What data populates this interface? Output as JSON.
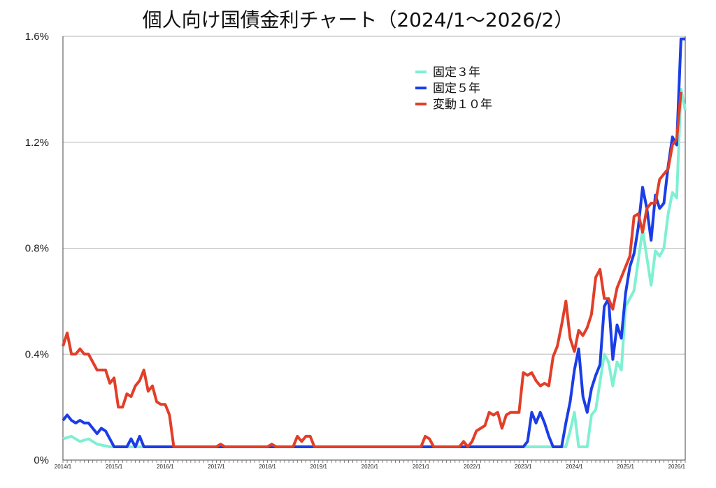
{
  "chart_data": {
    "type": "line",
    "title": "個人向け国債金利チャート（2024/1〜2026/2）",
    "xlabel": "",
    "ylabel": "",
    "y_ticks": [
      "0%",
      "0.4%",
      "0.8%",
      "1.2%",
      "1.6%"
    ],
    "ylim": [
      0,
      1.6
    ],
    "grid": "horizontal",
    "legend_position": "top-right",
    "x_ticks": [
      "2014/1",
      "2015/1",
      "2016/1",
      "2017/1",
      "2018/1",
      "2019/1",
      "2020/1",
      "2021/1",
      "2022/1",
      "2023/1",
      "2024/1",
      "2025/1",
      "2026/1"
    ],
    "x_start": "2014/1",
    "x_end": "2026/2",
    "series": [
      {
        "name": "固定３年",
        "color": "#7ff0d2",
        "points": [
          [
            "2014/1",
            0.08
          ],
          [
            "2014/3",
            0.09
          ],
          [
            "2014/5",
            0.07
          ],
          [
            "2014/7",
            0.08
          ],
          [
            "2014/9",
            0.06
          ],
          [
            "2014/12",
            0.05
          ],
          [
            "2015/1",
            0.05
          ],
          [
            "2023/11",
            0.05
          ],
          [
            "2023/12",
            0.11
          ],
          [
            "2024/1",
            0.18
          ],
          [
            "2024/2",
            0.05
          ],
          [
            "2024/4",
            0.05
          ],
          [
            "2024/5",
            0.17
          ],
          [
            "2024/6",
            0.19
          ],
          [
            "2024/8",
            0.4
          ],
          [
            "2024/9",
            0.37
          ],
          [
            "2024/10",
            0.28
          ],
          [
            "2024/11",
            0.37
          ],
          [
            "2024/12",
            0.34
          ],
          [
            "2025/1",
            0.58
          ],
          [
            "2025/3",
            0.64
          ],
          [
            "2025/5",
            0.87
          ],
          [
            "2025/7",
            0.66
          ],
          [
            "2025/8",
            0.79
          ],
          [
            "2025/9",
            0.77
          ],
          [
            "2025/10",
            0.8
          ],
          [
            "2025/11",
            0.93
          ],
          [
            "2025/12",
            1.01
          ],
          [
            "2026/1",
            0.99
          ],
          [
            "2026/2",
            1.4
          ],
          [
            "2026/3",
            1.32
          ]
        ]
      },
      {
        "name": "固定５年",
        "color": "#1a3de8",
        "points": [
          [
            "2014/1",
            0.15
          ],
          [
            "2014/2",
            0.17
          ],
          [
            "2014/3",
            0.15
          ],
          [
            "2014/4",
            0.14
          ],
          [
            "2014/5",
            0.15
          ],
          [
            "2014/6",
            0.14
          ],
          [
            "2014/7",
            0.14
          ],
          [
            "2014/9",
            0.1
          ],
          [
            "2014/10",
            0.12
          ],
          [
            "2014/11",
            0.11
          ],
          [
            "2015/1",
            0.05
          ],
          [
            "2015/4",
            0.05
          ],
          [
            "2015/5",
            0.08
          ],
          [
            "2015/6",
            0.05
          ],
          [
            "2015/7",
            0.09
          ],
          [
            "2015/8",
            0.05
          ],
          [
            "2023/1",
            0.05
          ],
          [
            "2023/2",
            0.07
          ],
          [
            "2023/3",
            0.18
          ],
          [
            "2023/4",
            0.14
          ],
          [
            "2023/5",
            0.18
          ],
          [
            "2023/6",
            0.14
          ],
          [
            "2023/7",
            0.09
          ],
          [
            "2023/8",
            0.05
          ],
          [
            "2023/10",
            0.05
          ],
          [
            "2023/11",
            0.14
          ],
          [
            "2023/12",
            0.22
          ],
          [
            "2024/1",
            0.34
          ],
          [
            "2024/2",
            0.42
          ],
          [
            "2024/3",
            0.24
          ],
          [
            "2024/4",
            0.18
          ],
          [
            "2024/5",
            0.27
          ],
          [
            "2024/6",
            0.32
          ],
          [
            "2024/7",
            0.36
          ],
          [
            "2024/8",
            0.58
          ],
          [
            "2024/9",
            0.61
          ],
          [
            "2024/10",
            0.38
          ],
          [
            "2024/11",
            0.51
          ],
          [
            "2024/12",
            0.46
          ],
          [
            "2025/1",
            0.63
          ],
          [
            "2025/2",
            0.73
          ],
          [
            "2025/3",
            0.78
          ],
          [
            "2025/4",
            0.88
          ],
          [
            "2025/5",
            1.03
          ],
          [
            "2025/6",
            0.95
          ],
          [
            "2025/7",
            0.83
          ],
          [
            "2025/8",
            1.0
          ],
          [
            "2025/9",
            0.95
          ],
          [
            "2025/10",
            0.97
          ],
          [
            "2025/11",
            1.11
          ],
          [
            "2025/12",
            1.22
          ],
          [
            "2026/1",
            1.19
          ],
          [
            "2026/2",
            1.59
          ],
          [
            "2026/3",
            1.59
          ]
        ]
      },
      {
        "name": "変動１０年",
        "color": "#e23e28",
        "points": [
          [
            "2014/1",
            0.43
          ],
          [
            "2014/2",
            0.48
          ],
          [
            "2014/3",
            0.4
          ],
          [
            "2014/4",
            0.4
          ],
          [
            "2014/5",
            0.42
          ],
          [
            "2014/6",
            0.4
          ],
          [
            "2014/7",
            0.4
          ],
          [
            "2014/9",
            0.34
          ],
          [
            "2014/10",
            0.34
          ],
          [
            "2014/11",
            0.34
          ],
          [
            "2014/12",
            0.29
          ],
          [
            "2015/1",
            0.31
          ],
          [
            "2015/2",
            0.2
          ],
          [
            "2015/3",
            0.2
          ],
          [
            "2015/4",
            0.25
          ],
          [
            "2015/5",
            0.24
          ],
          [
            "2015/6",
            0.28
          ],
          [
            "2015/7",
            0.3
          ],
          [
            "2015/8",
            0.34
          ],
          [
            "2015/9",
            0.26
          ],
          [
            "2015/10",
            0.28
          ],
          [
            "2015/11",
            0.22
          ],
          [
            "2015/12",
            0.21
          ],
          [
            "2016/1",
            0.21
          ],
          [
            "2016/2",
            0.17
          ],
          [
            "2016/3",
            0.05
          ],
          [
            "2017/1",
            0.05
          ],
          [
            "2017/2",
            0.06
          ],
          [
            "2017/3",
            0.05
          ],
          [
            "2018/1",
            0.05
          ],
          [
            "2018/2",
            0.06
          ],
          [
            "2018/3",
            0.05
          ],
          [
            "2018/7",
            0.05
          ],
          [
            "2018/8",
            0.09
          ],
          [
            "2018/9",
            0.07
          ],
          [
            "2018/10",
            0.09
          ],
          [
            "2018/11",
            0.09
          ],
          [
            "2018/12",
            0.05
          ],
          [
            "2021/1",
            0.05
          ],
          [
            "2021/2",
            0.09
          ],
          [
            "2021/3",
            0.08
          ],
          [
            "2021/4",
            0.05
          ],
          [
            "2021/10",
            0.05
          ],
          [
            "2021/11",
            0.07
          ],
          [
            "2021/12",
            0.05
          ],
          [
            "2022/1",
            0.07
          ],
          [
            "2022/2",
            0.11
          ],
          [
            "2022/3",
            0.12
          ],
          [
            "2022/4",
            0.13
          ],
          [
            "2022/5",
            0.18
          ],
          [
            "2022/6",
            0.17
          ],
          [
            "2022/7",
            0.18
          ],
          [
            "2022/8",
            0.12
          ],
          [
            "2022/9",
            0.17
          ],
          [
            "2022/10",
            0.18
          ],
          [
            "2022/11",
            0.18
          ],
          [
            "2022/12",
            0.18
          ],
          [
            "2023/1",
            0.33
          ],
          [
            "2023/2",
            0.32
          ],
          [
            "2023/3",
            0.33
          ],
          [
            "2023/4",
            0.3
          ],
          [
            "2023/5",
            0.28
          ],
          [
            "2023/6",
            0.29
          ],
          [
            "2023/7",
            0.28
          ],
          [
            "2023/8",
            0.39
          ],
          [
            "2023/9",
            0.43
          ],
          [
            "2023/10",
            0.51
          ],
          [
            "2023/11",
            0.6
          ],
          [
            "2023/12",
            0.46
          ],
          [
            "2024/1",
            0.41
          ],
          [
            "2024/2",
            0.49
          ],
          [
            "2024/3",
            0.47
          ],
          [
            "2024/4",
            0.5
          ],
          [
            "2024/5",
            0.55
          ],
          [
            "2024/6",
            0.69
          ],
          [
            "2024/7",
            0.72
          ],
          [
            "2024/8",
            0.61
          ],
          [
            "2024/9",
            0.61
          ],
          [
            "2024/10",
            0.57
          ],
          [
            "2024/11",
            0.65
          ],
          [
            "2024/12",
            0.69
          ],
          [
            "2025/1",
            0.73
          ],
          [
            "2025/2",
            0.77
          ],
          [
            "2025/3",
            0.92
          ],
          [
            "2025/4",
            0.93
          ],
          [
            "2025/5",
            0.86
          ],
          [
            "2025/6",
            0.95
          ],
          [
            "2025/7",
            0.97
          ],
          [
            "2025/8",
            0.97
          ],
          [
            "2025/9",
            1.06
          ],
          [
            "2025/10",
            1.08
          ],
          [
            "2025/11",
            1.1
          ],
          [
            "2025/12",
            1.19
          ],
          [
            "2026/1",
            1.21
          ],
          [
            "2026/2",
            1.39
          ]
        ]
      }
    ]
  }
}
